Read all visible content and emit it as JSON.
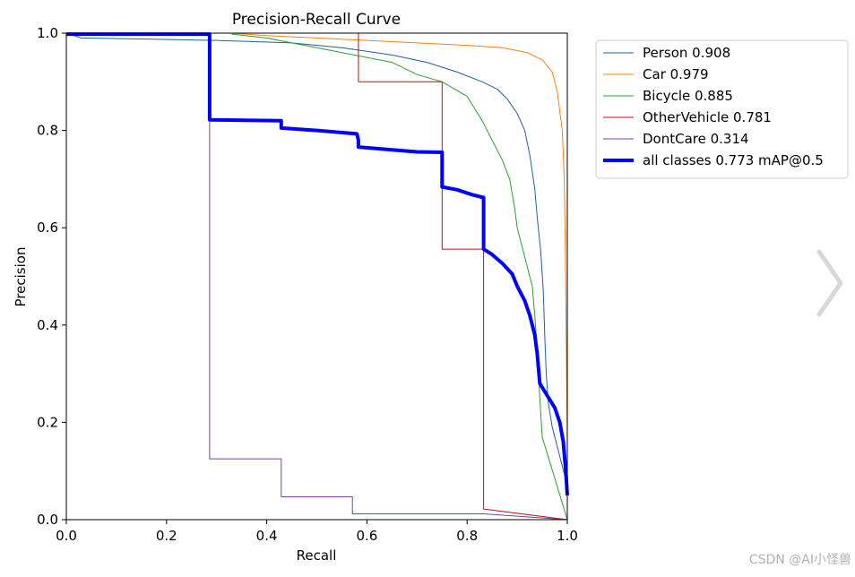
{
  "chart_data": {
    "type": "line",
    "title": "Precision-Recall Curve",
    "xlabel": "Recall",
    "ylabel": "Precision",
    "xlim": [
      0,
      1
    ],
    "ylim": [
      0,
      1
    ],
    "x_ticks": [
      "0.0",
      "0.2",
      "0.4",
      "0.6",
      "0.8",
      "1.0"
    ],
    "y_ticks": [
      "0.0",
      "0.2",
      "0.4",
      "0.6",
      "0.8",
      "1.0"
    ],
    "legend_position": "outside-right-top",
    "grid": false,
    "series": [
      {
        "name": "Person 0.908",
        "color": "#1f5fa8",
        "width": 1,
        "points": [
          [
            0.0,
            1.0
          ],
          [
            0.03,
            0.99
          ],
          [
            0.15,
            0.988
          ],
          [
            0.3,
            0.985
          ],
          [
            0.45,
            0.98
          ],
          [
            0.55,
            0.97
          ],
          [
            0.65,
            0.955
          ],
          [
            0.72,
            0.94
          ],
          [
            0.78,
            0.92
          ],
          [
            0.83,
            0.9
          ],
          [
            0.86,
            0.885
          ],
          [
            0.88,
            0.865
          ],
          [
            0.9,
            0.835
          ],
          [
            0.915,
            0.8
          ],
          [
            0.925,
            0.75
          ],
          [
            0.935,
            0.68
          ],
          [
            0.94,
            0.62
          ],
          [
            0.947,
            0.55
          ],
          [
            0.952,
            0.47
          ],
          [
            0.955,
            0.38
          ],
          [
            0.958,
            0.3
          ],
          [
            0.962,
            0.24
          ],
          [
            0.97,
            0.19
          ],
          [
            0.985,
            0.13
          ],
          [
            1.0,
            0.07
          ],
          [
            1.0,
            0.0
          ]
        ]
      },
      {
        "name": "Car 0.979",
        "color": "#ff7f0e",
        "width": 1,
        "points": [
          [
            0.33,
            1.0
          ],
          [
            0.4,
            0.995
          ],
          [
            0.5,
            0.99
          ],
          [
            0.6,
            0.985
          ],
          [
            0.7,
            0.98
          ],
          [
            0.8,
            0.975
          ],
          [
            0.87,
            0.97
          ],
          [
            0.92,
            0.96
          ],
          [
            0.95,
            0.945
          ],
          [
            0.97,
            0.92
          ],
          [
            0.98,
            0.88
          ],
          [
            0.99,
            0.8
          ],
          [
            0.994,
            0.7
          ],
          [
            0.996,
            0.55
          ],
          [
            0.998,
            0.35
          ],
          [
            1.0,
            0.15
          ],
          [
            1.0,
            0.0
          ]
        ]
      },
      {
        "name": "Bicycle 0.885",
        "color": "#2ca02c",
        "width": 1,
        "points": [
          [
            0.33,
            0.998
          ],
          [
            0.4,
            0.99
          ],
          [
            0.45,
            0.98
          ],
          [
            0.5,
            0.97
          ],
          [
            0.55,
            0.96
          ],
          [
            0.6,
            0.95
          ],
          [
            0.65,
            0.94
          ],
          [
            0.7,
            0.915
          ],
          [
            0.75,
            0.9
          ],
          [
            0.8,
            0.87
          ],
          [
            0.83,
            0.82
          ],
          [
            0.85,
            0.78
          ],
          [
            0.87,
            0.74
          ],
          [
            0.885,
            0.7
          ],
          [
            0.895,
            0.64
          ],
          [
            0.9,
            0.6
          ],
          [
            0.91,
            0.56
          ],
          [
            0.92,
            0.52
          ],
          [
            0.93,
            0.48
          ],
          [
            0.935,
            0.42
          ],
          [
            0.94,
            0.35
          ],
          [
            0.945,
            0.25
          ],
          [
            0.95,
            0.17
          ],
          [
            1.0,
            0.0
          ]
        ]
      },
      {
        "name": "OtherVehicle 0.781",
        "color": "#c01010",
        "width": 1,
        "points": [
          [
            0.583,
            1.0
          ],
          [
            0.583,
            0.9
          ],
          [
            0.75,
            0.9
          ],
          [
            0.75,
            0.556
          ],
          [
            0.833,
            0.556
          ],
          [
            0.833,
            0.022
          ],
          [
            1.0,
            0.0
          ]
        ]
      },
      {
        "name": "DontCare 0.314",
        "color": "#7b3fa6",
        "width": 1,
        "points": [
          [
            0.286,
            1.0
          ],
          [
            0.286,
            0.125
          ],
          [
            0.429,
            0.125
          ],
          [
            0.429,
            0.047
          ],
          [
            0.571,
            0.047
          ],
          [
            0.571,
            0.012
          ],
          [
            0.833,
            0.012
          ],
          [
            1.0,
            0.0
          ]
        ]
      },
      {
        "name": "all classes 0.773 mAP@0.5",
        "color": "#0000ff",
        "width": 4,
        "points": [
          [
            0.0,
            0.998
          ],
          [
            0.286,
            0.998
          ],
          [
            0.286,
            0.822
          ],
          [
            0.429,
            0.82
          ],
          [
            0.429,
            0.805
          ],
          [
            0.5,
            0.8
          ],
          [
            0.58,
            0.793
          ],
          [
            0.583,
            0.78
          ],
          [
            0.583,
            0.766
          ],
          [
            0.65,
            0.76
          ],
          [
            0.7,
            0.756
          ],
          [
            0.75,
            0.755
          ],
          [
            0.75,
            0.684
          ],
          [
            0.78,
            0.678
          ],
          [
            0.81,
            0.668
          ],
          [
            0.833,
            0.662
          ],
          [
            0.833,
            0.556
          ],
          [
            0.85,
            0.545
          ],
          [
            0.87,
            0.527
          ],
          [
            0.89,
            0.505
          ],
          [
            0.9,
            0.48
          ],
          [
            0.915,
            0.45
          ],
          [
            0.925,
            0.42
          ],
          [
            0.935,
            0.38
          ],
          [
            0.94,
            0.34
          ],
          [
            0.945,
            0.28
          ],
          [
            0.96,
            0.255
          ],
          [
            0.975,
            0.23
          ],
          [
            0.985,
            0.2
          ],
          [
            0.992,
            0.16
          ],
          [
            0.997,
            0.1
          ],
          [
            1.0,
            0.05
          ]
        ]
      }
    ]
  },
  "watermark": "CSDN @AI小怪兽",
  "icons": {
    "next_arrow": "chevron-right-icon",
    "next_arrow_color": "#d8d8d8"
  }
}
